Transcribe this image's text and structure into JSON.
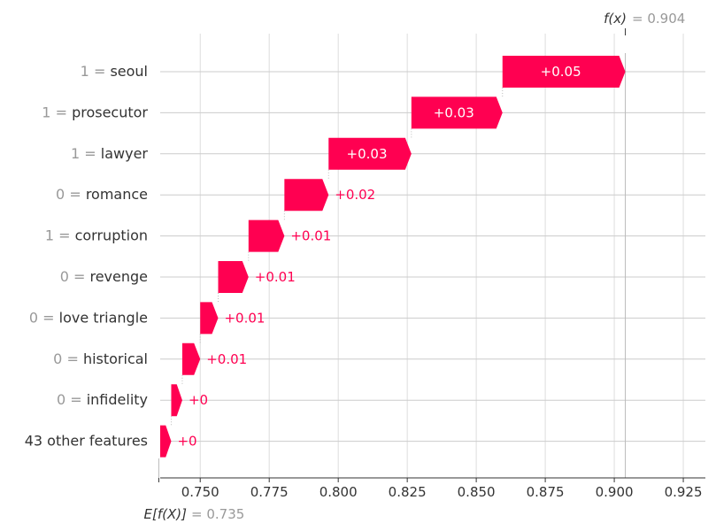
{
  "chart_data": {
    "type": "waterfall",
    "base_label": "E[f(X)]",
    "base_value_text": "= 0.735",
    "base_value": 0.735,
    "output_label": "f(x)",
    "output_value_text": "= 0.904",
    "output_value": 0.904,
    "xlim": [
      0.7355,
      0.933
    ],
    "xticks": [
      0.75,
      0.775,
      0.8,
      0.825,
      0.85,
      0.875,
      0.9,
      0.925
    ],
    "xtick_labels": [
      "0.750",
      "0.775",
      "0.800",
      "0.825",
      "0.850",
      "0.875",
      "0.900",
      "0.925"
    ],
    "positive_color": "#ff0051",
    "features": [
      {
        "value": "1",
        "name": "seoul",
        "start": 0.8595,
        "end": 0.904,
        "label": "+0.05"
      },
      {
        "value": "1",
        "name": "prosecutor",
        "start": 0.8265,
        "end": 0.8595,
        "label": "+0.03"
      },
      {
        "value": "1",
        "name": "lawyer",
        "start": 0.7965,
        "end": 0.8265,
        "label": "+0.03"
      },
      {
        "value": "0",
        "name": "romance",
        "start": 0.7805,
        "end": 0.7965,
        "label": "+0.02"
      },
      {
        "value": "1",
        "name": "corruption",
        "start": 0.7675,
        "end": 0.7805,
        "label": "+0.01"
      },
      {
        "value": "0",
        "name": "revenge",
        "start": 0.7565,
        "end": 0.7675,
        "label": "+0.01"
      },
      {
        "value": "0",
        "name": "love triangle",
        "start": 0.75,
        "end": 0.7565,
        "label": "+0.01"
      },
      {
        "value": "0",
        "name": "historical",
        "start": 0.7435,
        "end": 0.75,
        "label": "+0.01"
      },
      {
        "value": "0",
        "name": "infidelity",
        "start": 0.7395,
        "end": 0.7435,
        "label": "+0"
      },
      {
        "value": "",
        "name": "43 other features",
        "start": 0.7355,
        "end": 0.7395,
        "label": "+0"
      }
    ]
  }
}
